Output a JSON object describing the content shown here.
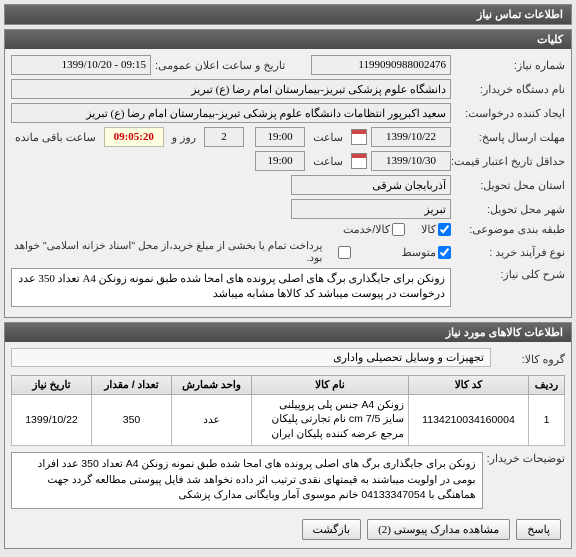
{
  "panels": {
    "contact": {
      "title": "اطلاعات تماس نیاز"
    },
    "general": {
      "title": "کلیات"
    },
    "items": {
      "title": "اطلاعات کالاهای مورد نیاز"
    }
  },
  "labels": {
    "need_number": "شماره نیاز:",
    "public_announce_datetime": "تاریخ و ساعت اعلان عمومی:",
    "buyer_org": "نام دستگاه خریدار:",
    "buyer_user": "ایجاد کننده درخواست:",
    "reply_deadline": "مهلت ارسال پاسخ:",
    "hour": "ساعت",
    "day_and": "روز  و",
    "remaining": "ساعت باقی مانده",
    "price_valid": "حداقل تاریخ اعتبار قیمت: تا تاریخ:",
    "delivery_province": "استان محل تحویل:",
    "delivery_city": "شهر محل تحویل:",
    "budget_class": "طبقه بندی موضوعی:",
    "goods": "کالا",
    "service": "کالا/خدمت",
    "purchase_type": "نوع فرآیند خرید :",
    "mid": "متوسط",
    "payment_note": "پرداخت تمام یا بخشی از مبلغ خرید،از محل \"اسناد خزانه اسلامی\" خواهد بود.",
    "overall_title": "شرح کلی نیاز:",
    "goods_group": "گروه کالا:",
    "buyer_desc": "توضیحات خریدار:",
    "col_row": "ردیف",
    "col_code": "کد کالا",
    "col_name": "نام کالا",
    "col_unit": "واحد شمارش",
    "col_qty": "تعداد / مقدار",
    "col_date": "تاریخ نیاز"
  },
  "values": {
    "need_number": "1199090988002476",
    "public_datetime": "09:15 - 1399/10/20",
    "buyer_org": "دانشگاه علوم پزشکی تبریز-بیمارستان امام رضا (ع) تبریز",
    "buyer_user": "سعید اکبرپور انتظامات دانشگاه علوم پزشکی تبریز-بیمارستان امام رضا (ع) تبریز",
    "reply_date": "1399/10/22",
    "reply_time": "19:00",
    "days_left": "2",
    "time_left": "09:05:20",
    "price_valid_date": "1399/10/30",
    "price_valid_time": "19:00",
    "province": "آذربایجان شرقی",
    "city": "تبریز",
    "overall_desc": "زونکن برای جایگذاری برگ های اصلی پرونده های امحا شده طبق نمونه زونکن A4 تعداد 350 عدد درخواست در پیوست میباشد کد کالاها مشابه میباشد",
    "goods_group": "تجهیزات و وسایل تحصیلی واداری",
    "buyer_desc": "زونکن برای جایگذاری برگ های اصلی پرونده های امحا شده طبق نمونه زونکن A4 تعداد 350 عدد افراد بومی در اولویت میباشند به قیمتهای نقدی ترتیب اثر داده نخواهد شد فایل پیوستی مطالعه گردد جهت هماهنگی با 04133347054 خانم موسوی آمار وبایگانی مدارک پزشکی"
  },
  "checkboxes": {
    "goods_checked": true,
    "service_checked": false,
    "mid_checked": true,
    "treasury_checked": false
  },
  "table": {
    "rows": [
      {
        "idx": "1",
        "code": "1134210034160004",
        "name": "زونکن A4 جنس پلی پروپیلنی سایز cm 7/5 نام تجارتی پلیکان مرجع عرضه کننده پلیکان ایران",
        "unit": "عدد",
        "qty": "350",
        "date": "1399/10/22"
      }
    ]
  },
  "buttons": {
    "reply": "پاسخ",
    "attachments": "مشاهده مدارک پیوستی (2)",
    "return": "بازگشت"
  }
}
